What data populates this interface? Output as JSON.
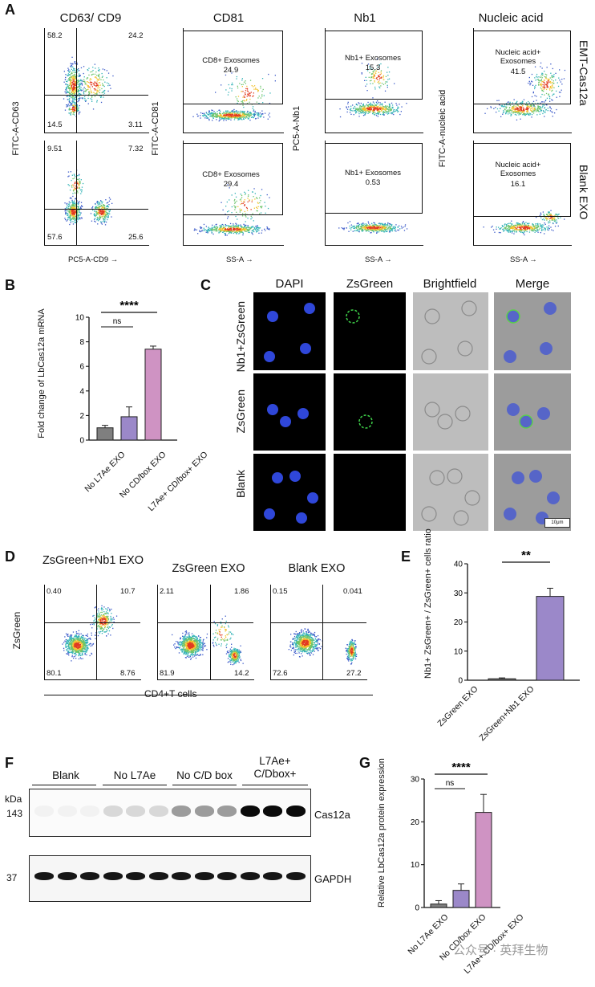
{
  "panels": {
    "A": "A",
    "B": "B",
    "C": "C",
    "D": "D",
    "E": "E",
    "F": "F",
    "G": "G"
  },
  "panelA": {
    "columns": [
      "CD63/ CD9",
      "CD81",
      "Nb1",
      "Nucleic acid"
    ],
    "rows": [
      "EMT-Cas12a",
      "Blank EXO"
    ],
    "cd_top": {
      "q1": "58.2",
      "q2": "24.2",
      "q3": "14.5",
      "q4": "3.11"
    },
    "cd_bottom": {
      "q1": "9.51",
      "q2": "7.32",
      "q3": "57.6",
      "q4": "25.6"
    },
    "cd81": {
      "gate": "CD8+ Exosomes",
      "top": "24.9",
      "bottom": "29.4"
    },
    "nb1": {
      "gate": "Nb1+ Exosomes",
      "top": "15.3",
      "bottom": "0.53"
    },
    "nucleic": {
      "gate": "Nucleic acid+ Exosomes",
      "top": "41.5",
      "bottom": "16.1"
    },
    "ylabels": {
      "cd": "FITC-A-CD63",
      "cd81": "FITC-A-CD81",
      "nb1": "PC5-A-Nb1",
      "nucleic": "FITC-A-nucleic acid"
    },
    "xlabels": {
      "cd": "PC5-A-CD9 →",
      "ss": "SS-A →"
    }
  },
  "panelB": {
    "chart_data": {
      "type": "bar",
      "categories": [
        "No L7Ae EXO",
        "No CD/box EXO",
        "L7Ae+ CD/box+ EXO"
      ],
      "values": [
        1.0,
        1.9,
        7.4
      ],
      "errors": [
        0.2,
        0.8,
        0.25
      ],
      "ylabel": "Fold change of LbCas12a mRNA",
      "ylim": [
        0,
        10
      ],
      "yticks": [
        "0",
        "2",
        "4",
        "6",
        "8",
        "10"
      ],
      "sig": {
        "top": "****",
        "inner": "ns"
      },
      "colors": [
        "#7f7f7f",
        "#9b88c9",
        "#cf93c3"
      ]
    }
  },
  "panelC": {
    "columns": [
      "DAPI",
      "ZsGreen",
      "Brightfield",
      "Merge"
    ],
    "rows": [
      "Nb1+ZsGreen",
      "ZsGreen",
      "Blank"
    ],
    "scalebar": "10μm"
  },
  "panelD": {
    "titles": [
      "ZsGreen+Nb1 EXO",
      "ZsGreen EXO",
      "Blank EXO"
    ],
    "q": [
      {
        "q1": "0.40",
        "q2": "10.7",
        "q3": "80.1",
        "q4": "8.76"
      },
      {
        "q1": "2.11",
        "q2": "1.86",
        "q3": "81.9",
        "q4": "14.2"
      },
      {
        "q1": "0.15",
        "q2": "0.041",
        "q3": "72.6",
        "q4": "27.2"
      }
    ],
    "ylabel": "ZsGreen",
    "xlabel": "CD4+T cells"
  },
  "panelE": {
    "chart_data": {
      "type": "bar",
      "categories": [
        "ZsGreen EXO",
        "ZsGreen+Nb1 EXO"
      ],
      "values": [
        0.5,
        28.8
      ],
      "errors": [
        0.3,
        2.8
      ],
      "ylabel": "Nb1+ ZsGreen+ / ZsGreen+ cells ratio",
      "ylim": [
        0,
        40
      ],
      "yticks": [
        "0",
        "10",
        "20",
        "30",
        "40"
      ],
      "sig": "**",
      "colors": [
        "#7f7f7f",
        "#9b88c9"
      ]
    }
  },
  "panelF": {
    "groups": [
      "Blank",
      "No L7Ae",
      "No C/D box",
      "L7Ae+ C/Dbox+"
    ],
    "kda": "kDa",
    "mw": [
      "143",
      "37"
    ],
    "bands": [
      "Cas12a",
      "GAPDH"
    ]
  },
  "panelG": {
    "chart_data": {
      "type": "bar",
      "categories": [
        "No L7Ae EXO",
        "No CD/box EXO",
        "L7Ae+ CD/box+ EXO"
      ],
      "values": [
        0.8,
        4.0,
        22.2
      ],
      "errors": [
        0.8,
        1.5,
        4.2
      ],
      "ylabel": "Relative LbCas12a protein expression",
      "ylim": [
        0,
        30
      ],
      "yticks": [
        "0",
        "10",
        "20",
        "30"
      ],
      "sig": {
        "top": "****",
        "inner": "ns"
      },
      "colors": [
        "#7f7f7f",
        "#9b88c9",
        "#cf93c3"
      ]
    }
  },
  "watermark": "公众号 · 英拜生物"
}
